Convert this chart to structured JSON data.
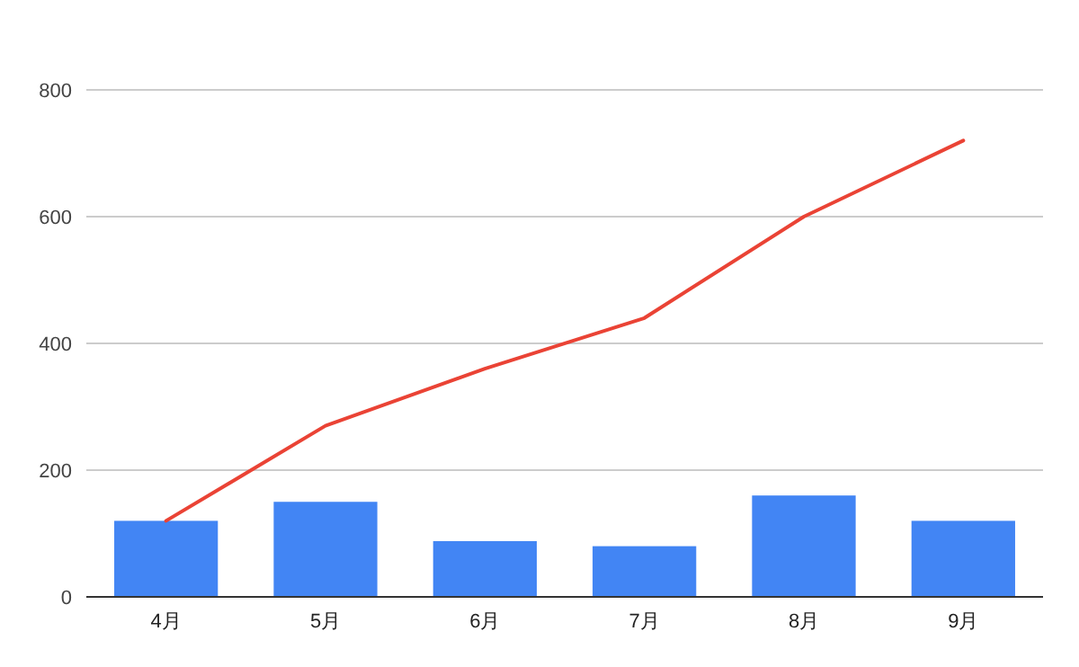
{
  "chart_data": {
    "type": "bar",
    "categories": [
      "4月",
      "5月",
      "6月",
      "7月",
      "8月",
      "9月"
    ],
    "series": [
      {
        "type": "bar",
        "color": "#4285f4",
        "values": [
          120,
          150,
          88,
          80,
          160,
          120
        ]
      },
      {
        "type": "line",
        "color": "#ea4335",
        "values": [
          120,
          270,
          360,
          440,
          600,
          720
        ]
      }
    ],
    "ylim": [
      0,
      800
    ],
    "yticks": [
      0,
      200,
      400,
      600,
      800
    ],
    "grid": "y"
  }
}
